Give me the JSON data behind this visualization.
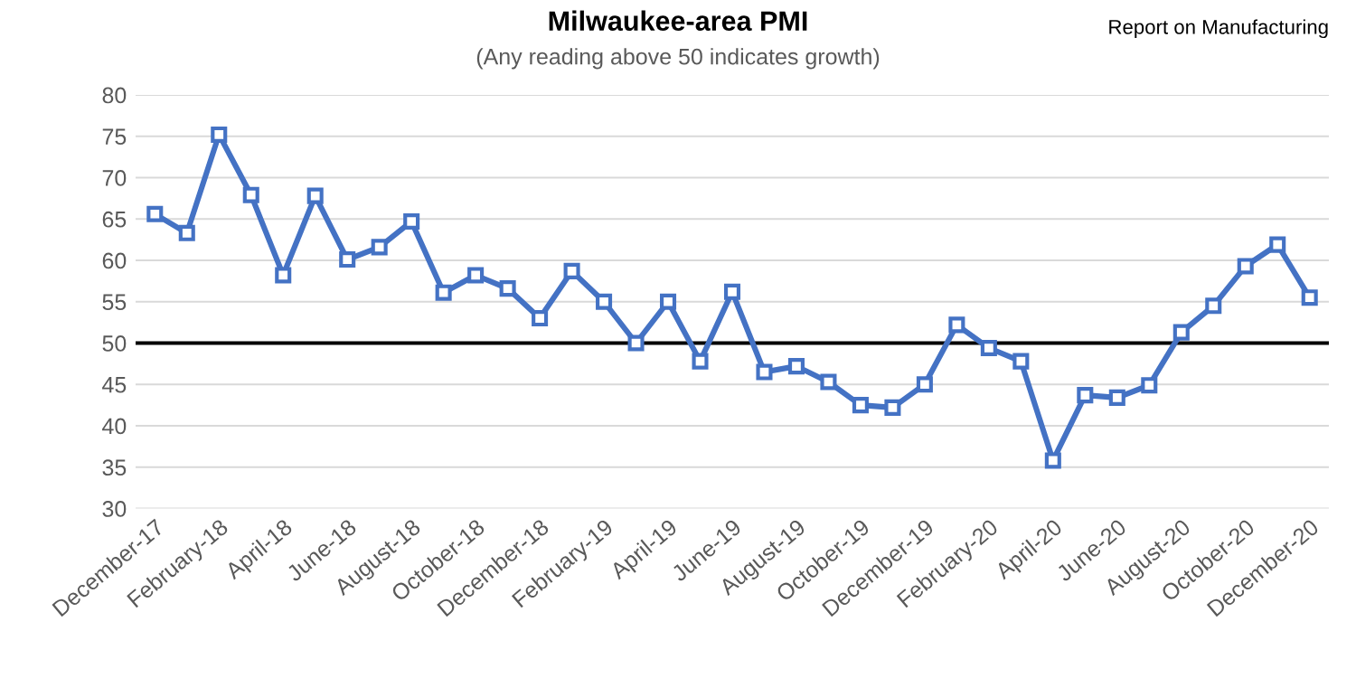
{
  "chart_data": {
    "type": "line",
    "title": "Milwaukee-area PMI",
    "subtitle": "(Any reading above 50 indicates growth)",
    "annotations": [
      "Report on Manufacturing"
    ],
    "categories": [
      "December-17",
      null,
      "February-18",
      null,
      "April-18",
      null,
      "June-18",
      null,
      "August-18",
      null,
      "October-18",
      null,
      "December-18",
      null,
      "February-19",
      null,
      "April-19",
      null,
      "June-19",
      null,
      "August-19",
      null,
      "October-19",
      null,
      "December-19",
      null,
      "February-20",
      null,
      "April-20",
      null,
      "June-20",
      null,
      "August-20",
      null,
      "October-20",
      null,
      "December-20"
    ],
    "series": [
      {
        "color": "#4472c4",
        "values": [
          65.6,
          63.3,
          75.2,
          67.9,
          58.2,
          67.8,
          60.1,
          61.6,
          64.7,
          56.1,
          58.2,
          56.6,
          53.0,
          58.7,
          55.0,
          50.0,
          55.0,
          47.8,
          56.2,
          46.5,
          47.2,
          45.3,
          42.5,
          42.2,
          45.0,
          52.2,
          49.4,
          47.8,
          35.8,
          43.7,
          43.4,
          44.9,
          51.3,
          54.5,
          59.3,
          61.9,
          55.5
        ]
      }
    ],
    "ylim": [
      30,
      80
    ],
    "yticks": [
      30,
      35,
      40,
      45,
      50,
      55,
      60,
      65,
      70,
      75,
      80
    ],
    "ref_lines": [
      {
        "axis": "y",
        "value": 50,
        "color": "#000000"
      }
    ],
    "grid": "y",
    "marker": "square",
    "line_style": "solid",
    "legend": false
  }
}
